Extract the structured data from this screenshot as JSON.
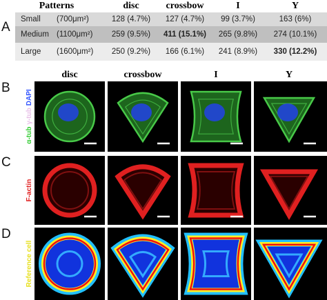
{
  "panel_labels": [
    "A",
    "B",
    "C",
    "D"
  ],
  "table": {
    "header": [
      "Patterns",
      "disc",
      "crossbow",
      "I",
      "Y"
    ],
    "rows": [
      [
        "Small",
        "(700μm²)",
        "128 (4.7%)",
        "127 (4.7%)",
        "99 (3.7%)",
        "163 (6%)"
      ],
      [
        "Medium",
        "(1100μm²)",
        "259 (9.5%)",
        "411 (15.1%)",
        "265 (9.8%)",
        "274 (10.1%)"
      ],
      [
        "Large",
        "(1600μm²)",
        "250 (9.2%)",
        "166 (6.1%)",
        "241 (8.9%)",
        "330 (12.2%)"
      ]
    ]
  },
  "images": {
    "columns": [
      "disc",
      "crossbow",
      "I",
      "Y"
    ],
    "rows": [
      {
        "label": [
          "α-tub",
          "γ-tub",
          "DAPI"
        ]
      },
      {
        "label": [
          "F-actin"
        ]
      },
      {
        "label": [
          "Reference cell"
        ]
      }
    ]
  }
}
